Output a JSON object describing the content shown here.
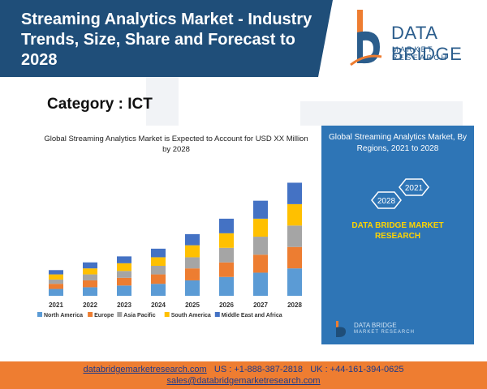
{
  "header": {
    "title": "Streaming Analytics Market - Industry Trends, Size, Share and Forecast to 2028",
    "logo": {
      "name": "DATA BRIDGE",
      "tagline": "MARKET RESEARCH",
      "icon": "data-bridge-logo-icon"
    }
  },
  "category": "Category : ICT",
  "chart_data": {
    "type": "bar",
    "stacked": true,
    "title": "Global Streaming Analytics Market is Expected to Account for USD XX Million by 2028",
    "xlabel": "",
    "ylabel": "",
    "categories": [
      "2021",
      "2022",
      "2023",
      "2024",
      "2025",
      "2026",
      "2027",
      "2028"
    ],
    "series": [
      {
        "name": "North America",
        "color": "#5b9bd5",
        "values": [
          8,
          10,
          12,
          14,
          18,
          22,
          27,
          32
        ]
      },
      {
        "name": "Europe",
        "color": "#ed7d31",
        "values": [
          6,
          8,
          9,
          11,
          14,
          17,
          21,
          25
        ]
      },
      {
        "name": "Asia Pacific",
        "color": "#a5a5a5",
        "values": [
          5,
          7,
          8,
          10,
          13,
          17,
          21,
          25
        ]
      },
      {
        "name": "South America",
        "color": "#ffc000",
        "values": [
          6,
          7,
          9,
          10,
          14,
          17,
          21,
          25
        ]
      },
      {
        "name": "Middle East and Africa",
        "color": "#4472c4",
        "values": [
          5,
          7,
          8,
          10,
          13,
          17,
          21,
          25
        ]
      }
    ],
    "ylim": [
      0,
      140
    ],
    "grid": false,
    "legend": "bottom"
  },
  "side_panel": {
    "title": "Global Streaming Analytics Market, By Regions, 2021 to 2028",
    "hex_labels": [
      "2028",
      "2021"
    ],
    "brand": "DATA BRIDGE MARKET RESEARCH",
    "mini_logo": {
      "name": "DATA BRIDGE",
      "tagline": "MARKET RESEARCH"
    }
  },
  "footer": {
    "website": "databridgemarketresearch.com",
    "us_phone": "US : +1-888-387-2818",
    "uk_phone": "UK : +44-161-394-0625",
    "email": "sales@databridgemarketresearch.com"
  },
  "colors": {
    "header": "#1f4e79",
    "panel": "#2e75b6",
    "footer": "#ee7d31",
    "brand_yellow": "#ffd400"
  }
}
